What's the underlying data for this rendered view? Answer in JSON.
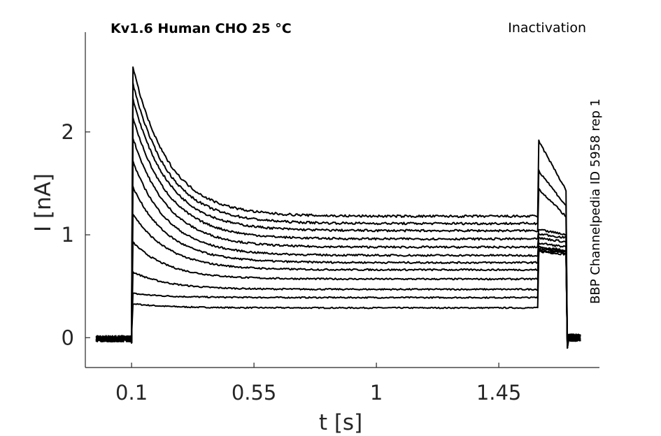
{
  "chart_data": {
    "type": "line",
    "title_left": "Kv1.6  Human  CHO  25 °C",
    "title_right": "Inactivation",
    "side_label": "BBP Channelpedia ID 5958 rep 1",
    "xlabel": "t [s]",
    "ylabel": "I [nA]",
    "xlim": [
      -0.07,
      1.82
    ],
    "ylim": [
      -0.29,
      2.97
    ],
    "x_ticks": [
      0.1,
      0.55,
      1,
      1.45
    ],
    "x_tick_labels": [
      "0.1",
      "0.55",
      "1",
      "1.45"
    ],
    "y_ticks": [
      0,
      1,
      2
    ],
    "y_tick_labels": [
      "0",
      "1",
      "2"
    ],
    "grid": false,
    "protocol": {
      "record_start": -0.03,
      "pulse_on": 0.1,
      "pulse_off": 1.595,
      "tail_end": 1.7,
      "record_end": 1.75
    },
    "series": [
      {
        "peak": 0.33,
        "plateau": 0.29,
        "tail_peak": 0.84,
        "tail_end": 0.81
      },
      {
        "peak": 0.43,
        "plateau": 0.39,
        "tail_peak": 0.85,
        "tail_end": 0.82
      },
      {
        "peak": 0.64,
        "plateau": 0.47,
        "tail_peak": 0.86,
        "tail_end": 0.83
      },
      {
        "peak": 0.93,
        "plateau": 0.57,
        "tail_peak": 0.87,
        "tail_end": 0.84
      },
      {
        "peak": 1.21,
        "plateau": 0.66,
        "tail_peak": 0.88,
        "tail_end": 0.85
      },
      {
        "peak": 1.47,
        "plateau": 0.73,
        "tail_peak": 0.92,
        "tail_end": 0.88
      },
      {
        "peak": 1.72,
        "plateau": 0.8,
        "tail_peak": 0.97,
        "tail_end": 0.93
      },
      {
        "peak": 1.95,
        "plateau": 0.88,
        "tail_peak": 1.01,
        "tail_end": 0.97
      },
      {
        "peak": 2.15,
        "plateau": 0.96,
        "tail_peak": 1.05,
        "tail_end": 1.0
      },
      {
        "peak": 2.33,
        "plateau": 1.04,
        "tail_peak": 1.45,
        "tail_end": 1.17
      },
      {
        "peak": 2.48,
        "plateau": 1.11,
        "tail_peak": 1.63,
        "tail_end": 1.27
      },
      {
        "peak": 2.64,
        "plateau": 1.18,
        "tail_peak": 1.92,
        "tail_end": 1.42
      }
    ]
  }
}
